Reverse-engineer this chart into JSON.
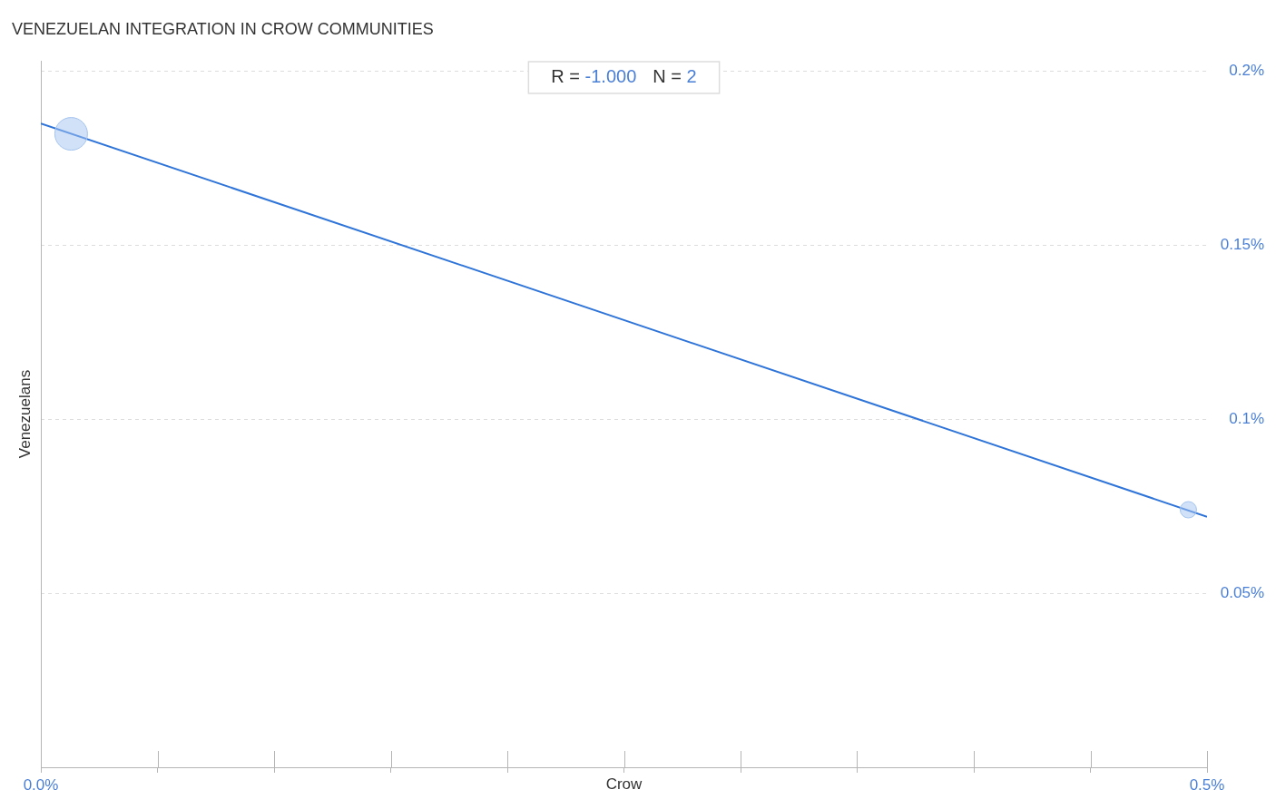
{
  "chart_data": {
    "type": "bubble",
    "title": "VENEZUELAN INTEGRATION IN CROW COMMUNITIES",
    "xlabel": "Crow",
    "ylabel": "Venezuelans",
    "annotations": [
      "R = -1.000",
      "N = 2"
    ],
    "xlim": [
      0,
      0.5
    ],
    "ylim": [
      0,
      0.203
    ],
    "xticks": [
      {
        "value": 0,
        "label": "0.0%"
      },
      {
        "value": 0.05,
        "label": null
      },
      {
        "value": 0.1,
        "label": null
      },
      {
        "value": 0.15,
        "label": null
      },
      {
        "value": 0.2,
        "label": null
      },
      {
        "value": 0.25,
        "label": null
      },
      {
        "value": 0.3,
        "label": null
      },
      {
        "value": 0.35,
        "label": null
      },
      {
        "value": 0.4,
        "label": null
      },
      {
        "value": 0.45,
        "label": null
      },
      {
        "value": 0.5,
        "label": "0.5%"
      }
    ],
    "yticks": [
      {
        "value": 0.05,
        "label": "0.05%"
      },
      {
        "value": 0.1,
        "label": "0.1%"
      },
      {
        "value": 0.15,
        "label": "0.15%"
      },
      {
        "value": 0.2,
        "label": "0.2%"
      }
    ],
    "grid": "y",
    "series": [
      {
        "color": "#a4c4f0",
        "x": [
          0.013,
          0.492
        ],
        "values": [
          0.182,
          0.074
        ],
        "sizes": [
          1,
          0.25
        ]
      },
      {
        "type": "line",
        "color": "#2f74d8",
        "x": [
          0,
          0.5
        ],
        "values": [
          0.185,
          0.072
        ],
        "marker": "none"
      }
    ]
  }
}
